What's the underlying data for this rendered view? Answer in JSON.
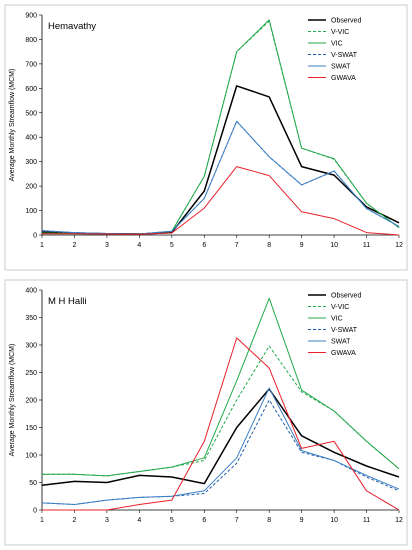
{
  "chart_data": [
    {
      "type": "line",
      "title": "Hemavathy",
      "ylabel": "Average Monthly Streamflow (MCM)",
      "xlabel": "",
      "x": [
        1,
        2,
        3,
        4,
        5,
        6,
        7,
        8,
        9,
        10,
        11,
        12
      ],
      "xticks": [
        "1",
        "2",
        "3",
        "4",
        "5",
        "6",
        "7",
        "8",
        "9",
        "10",
        "11",
        "12"
      ],
      "ylim": [
        0,
        900
      ],
      "yticks": [
        0,
        100,
        200,
        300,
        400,
        500,
        600,
        700,
        800,
        900
      ],
      "grid": false,
      "legend": "top-right",
      "series": [
        {
          "name": "Observed",
          "color": "#000000",
          "dash": "",
          "width": 1.5,
          "values": [
            12,
            8,
            5,
            4,
            10,
            180,
            610,
            565,
            280,
            245,
            115,
            50
          ]
        },
        {
          "name": "V-VIC",
          "color": "#22a84a",
          "dash": "3,2",
          "width": 1,
          "values": [
            8,
            6,
            4,
            4,
            14,
            240,
            750,
            875,
            355,
            310,
            130,
            30
          ]
        },
        {
          "name": "VIC",
          "color": "#22a84a",
          "dash": "",
          "width": 1,
          "values": [
            8,
            6,
            4,
            4,
            15,
            240,
            750,
            880,
            355,
            312,
            130,
            30
          ]
        },
        {
          "name": "V-SWAT",
          "color": "#1f5ea8",
          "dash": "3,2",
          "width": 1,
          "values": [
            18,
            10,
            6,
            4,
            15,
            150,
            465,
            320,
            205,
            262,
            108,
            35
          ]
        },
        {
          "name": "SWAT",
          "color": "#3a7fc4",
          "dash": "",
          "width": 1,
          "values": [
            18,
            10,
            6,
            4,
            15,
            150,
            465,
            320,
            205,
            262,
            108,
            35
          ]
        },
        {
          "name": "GWAVA",
          "color": "#e8212a",
          "dash": "",
          "width": 1,
          "values": [
            5,
            5,
            4,
            3,
            8,
            110,
            280,
            243,
            95,
            67,
            10,
            0
          ]
        }
      ]
    },
    {
      "type": "line",
      "title": "M H Halli",
      "ylabel": "Average Monthly Streamflow (MCM)",
      "xlabel": "",
      "x": [
        1,
        2,
        3,
        4,
        5,
        6,
        7,
        8,
        9,
        10,
        11,
        12
      ],
      "xticks": [
        "1",
        "2",
        "3",
        "4",
        "5",
        "6",
        "7",
        "8",
        "9",
        "10",
        "11",
        "12"
      ],
      "ylim": [
        0,
        400
      ],
      "yticks": [
        0,
        50,
        100,
        150,
        200,
        250,
        300,
        350,
        400
      ],
      "grid": false,
      "legend": "top-right",
      "series": [
        {
          "name": "Observed",
          "color": "#000000",
          "dash": "",
          "width": 1.5,
          "values": [
            45,
            52,
            50,
            63,
            60,
            48,
            150,
            220,
            135,
            105,
            80,
            60
          ]
        },
        {
          "name": "V-VIC",
          "color": "#22a84a",
          "dash": "3,2",
          "width": 1,
          "values": [
            65,
            65,
            62,
            70,
            78,
            90,
            200,
            298,
            215,
            180,
            125,
            75
          ]
        },
        {
          "name": "VIC",
          "color": "#22a84a",
          "dash": "",
          "width": 1,
          "values": [
            65,
            65,
            62,
            70,
            78,
            95,
            235,
            385,
            218,
            180,
            125,
            75
          ]
        },
        {
          "name": "V-SWAT",
          "color": "#1f5ea8",
          "dash": "3,2",
          "width": 1,
          "values": [
            13,
            10,
            18,
            23,
            25,
            30,
            85,
            200,
            105,
            90,
            60,
            35
          ]
        },
        {
          "name": "SWAT",
          "color": "#3a7fc4",
          "dash": "",
          "width": 1,
          "values": [
            13,
            10,
            18,
            23,
            25,
            35,
            95,
            222,
            108,
            90,
            63,
            38
          ]
        },
        {
          "name": "GWAVA",
          "color": "#e8212a",
          "dash": "",
          "width": 1,
          "values": [
            0,
            0,
            0,
            10,
            18,
            125,
            313,
            258,
            112,
            125,
            35,
            0
          ]
        }
      ]
    }
  ]
}
